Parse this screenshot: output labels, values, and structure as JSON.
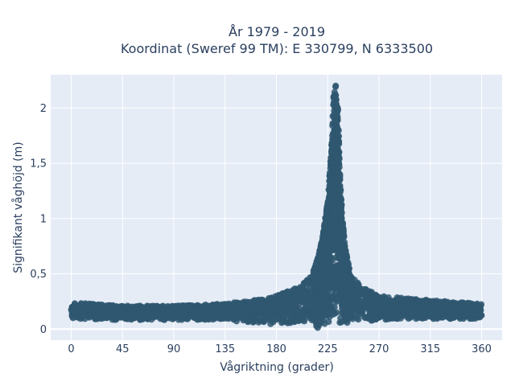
{
  "chart_data": {
    "type": "scatter",
    "title_line1": "År 1979 - 2019",
    "title_line2": "Koordinat (Sweref 99 TM): E 330799, N 6333500",
    "xlabel": "Vågriktning (grader)",
    "ylabel": "Signifikant våghöjd (m)",
    "xlim": [
      -18,
      378
    ],
    "ylim": [
      -0.1,
      2.3
    ],
    "grid": true,
    "x_ticks": [
      0,
      45,
      90,
      135,
      180,
      225,
      270,
      315,
      360
    ],
    "x_tick_labels": [
      "0",
      "45",
      "90",
      "135",
      "180",
      "225",
      "270",
      "315",
      "360"
    ],
    "y_ticks": [
      0,
      0.5,
      1,
      1.5,
      2
    ],
    "y_tick_labels": [
      "0",
      "0,5",
      "1",
      "1,5",
      "2"
    ],
    "marker_color": "#2f5770",
    "plot_background": "#e5ecf6",
    "series_envelope": {
      "x": [
        0,
        45,
        90,
        135,
        160,
        180,
        200,
        210,
        215,
        220,
        225,
        228,
        230,
        232,
        234,
        236,
        238,
        240,
        245,
        255,
        270,
        315,
        360
      ],
      "y_max": [
        0.24,
        0.21,
        0.21,
        0.23,
        0.26,
        0.3,
        0.38,
        0.48,
        0.6,
        0.8,
        1.15,
        1.6,
        2.1,
        2.2,
        2.0,
        1.35,
        1.0,
        0.75,
        0.5,
        0.38,
        0.3,
        0.26,
        0.23
      ],
      "y_min": [
        0.07,
        0.06,
        0.06,
        0.06,
        0.01,
        0.0,
        0.0,
        0.0,
        0.0,
        0.0,
        0.0,
        0.0,
        0.0,
        0.0,
        0.0,
        0.0,
        0.0,
        0.0,
        0.0,
        0.02,
        0.04,
        0.06,
        0.07
      ]
    },
    "peak": {
      "x": 232,
      "y": 2.2
    }
  }
}
